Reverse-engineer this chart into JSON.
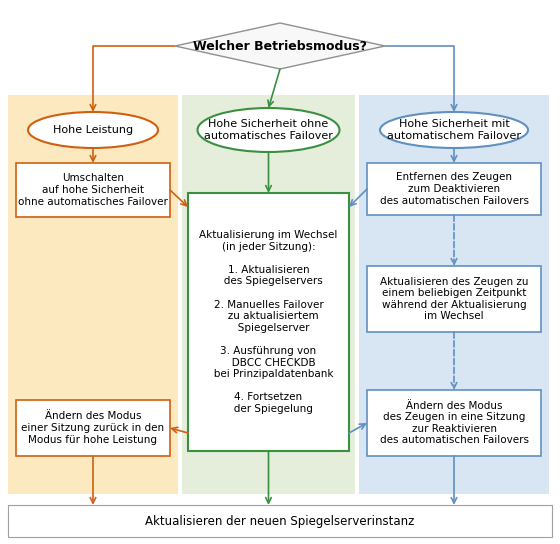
{
  "title": "Welcher Betriebsmodus?",
  "bg_color": "#ffffff",
  "diamond_fill": "#f8f8f8",
  "diamond_edge": "#909090",
  "col1_bg": "#fce9c0",
  "col2_bg": "#e4eeda",
  "col3_bg": "#d8e6f4",
  "col1_ec": "#d06010",
  "col2_ec": "#3a9040",
  "col3_ec": "#6090c0",
  "a1": "#d06010",
  "a2": "#3a9040",
  "a3": "#6090c0",
  "node_fill": "#ffffff",
  "bottom_edge": "#a0a0a0",
  "col1_label": "Hohe Leistung",
  "col2_label": "Hohe Sicherheit ohne\nautomatisches Failover",
  "col3_label": "Hohe Sicherheit mit\nautomatischem Failover",
  "col1_box1": "Umschalten\nauf hohe Sicherheit\nohne automatisches Failover",
  "col1_box2": "Ändern des Modus\neiner Sitzung zurück in den\nModus für hohe Leistung",
  "col2_center_box": "Aktualisierung im Wechsel\n(in jeder Sitzung):\n\n1. Aktualisieren\n   des Spiegelservers\n\n2. Manuelles Failover\n   zu aktualisiertem\n   Spiegelserver\n\n3. Ausführung von\n   DBCC CHECKDB\n   bei Prinzipaldatenbank\n\n4. Fortsetzen\n   der Spiegelung",
  "col3_box1": "Entfernen des Zeugen\nzum Deaktivieren\ndes automatischen Failovers",
  "col3_box2": "Aktualisieren des Zeugen zu\neinem beliebigen Zeitpunkt\nwährend der Aktualisierung\nim Wechsel",
  "col3_box3": "Ändern des Modus\ndes Zeugen in eine Sitzung\nzur Reaktivieren\ndes automatischen Failovers",
  "bottom_label": "Aktualisieren der neuen Spiegelserverinstanz"
}
